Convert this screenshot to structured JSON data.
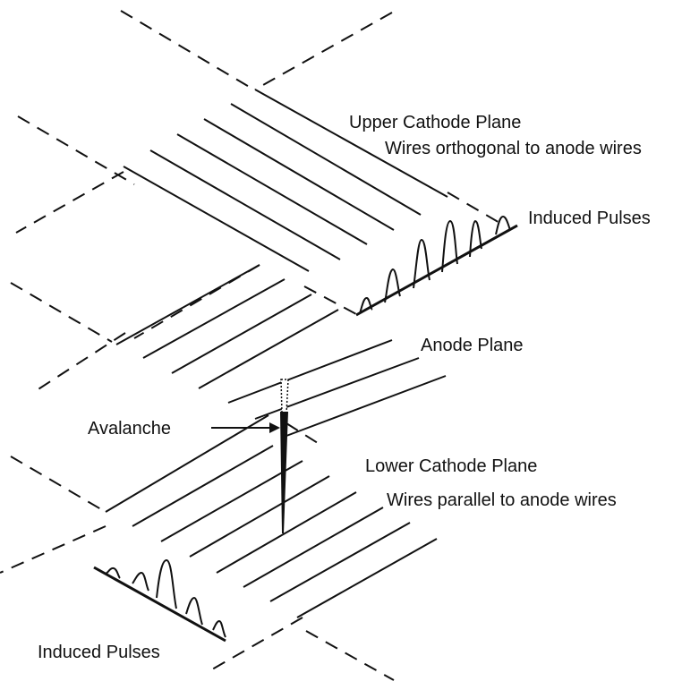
{
  "labels": {
    "upper_cathode_title": "Upper Cathode Plane",
    "upper_cathode_desc": "Wires orthogonal to anode wires",
    "induced_pulses_upper": "Induced Pulses",
    "anode_plane": "Anode Plane",
    "avalanche": "Avalanche",
    "lower_cathode_title": "Lower Cathode Plane",
    "lower_cathode_desc": "Wires parallel to anode wires",
    "induced_pulses_lower": "Induced Pulses"
  },
  "colors": {
    "ink": "#111111",
    "background": "#ffffff"
  }
}
